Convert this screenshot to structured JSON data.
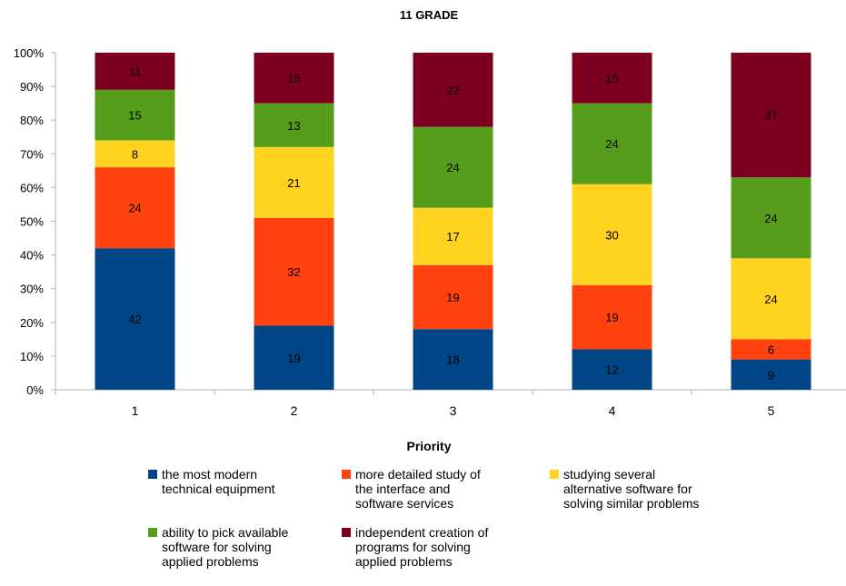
{
  "chart_data": {
    "type": "bar",
    "stacked": "percent",
    "title": "11 GRADE",
    "xlabel": "Priority",
    "ylabel": "",
    "ylim": [
      0,
      100
    ],
    "yticks": [
      "0%",
      "10%",
      "20%",
      "30%",
      "40%",
      "50%",
      "60%",
      "70%",
      "80%",
      "90%",
      "100%"
    ],
    "categories": [
      "1",
      "2",
      "3",
      "4",
      "5"
    ],
    "grid": false,
    "legend_position": "bottom",
    "series": [
      {
        "name": "the most modern technical equipment",
        "color": "#004586",
        "values": [
          42,
          19,
          18,
          12,
          9
        ]
      },
      {
        "name": "more detailed study of the interface and software services",
        "color": "#ff420e",
        "values": [
          24,
          32,
          19,
          19,
          6
        ]
      },
      {
        "name": "studying several alternative software for solving similar problems",
        "color": "#ffd320",
        "values": [
          8,
          21,
          17,
          30,
          24
        ]
      },
      {
        "name": "ability to pick available software for solving applied problems",
        "color": "#579d1c",
        "values": [
          15,
          13,
          24,
          24,
          24
        ]
      },
      {
        "name": "independent creation of programs for solving applied problems",
        "color": "#7e0021",
        "values": [
          11,
          15,
          22,
          15,
          37
        ]
      }
    ]
  },
  "legend_lines": [
    "the most modern\ntechnical equipment",
    "more detailed study of\nthe interface and\nsoftware services",
    "studying several\nalternative software for\nsolving similar problems",
    "ability to pick available\nsoftware for solving\napplied problems",
    "independent creation of\nprograms for solving\napplied problems"
  ]
}
